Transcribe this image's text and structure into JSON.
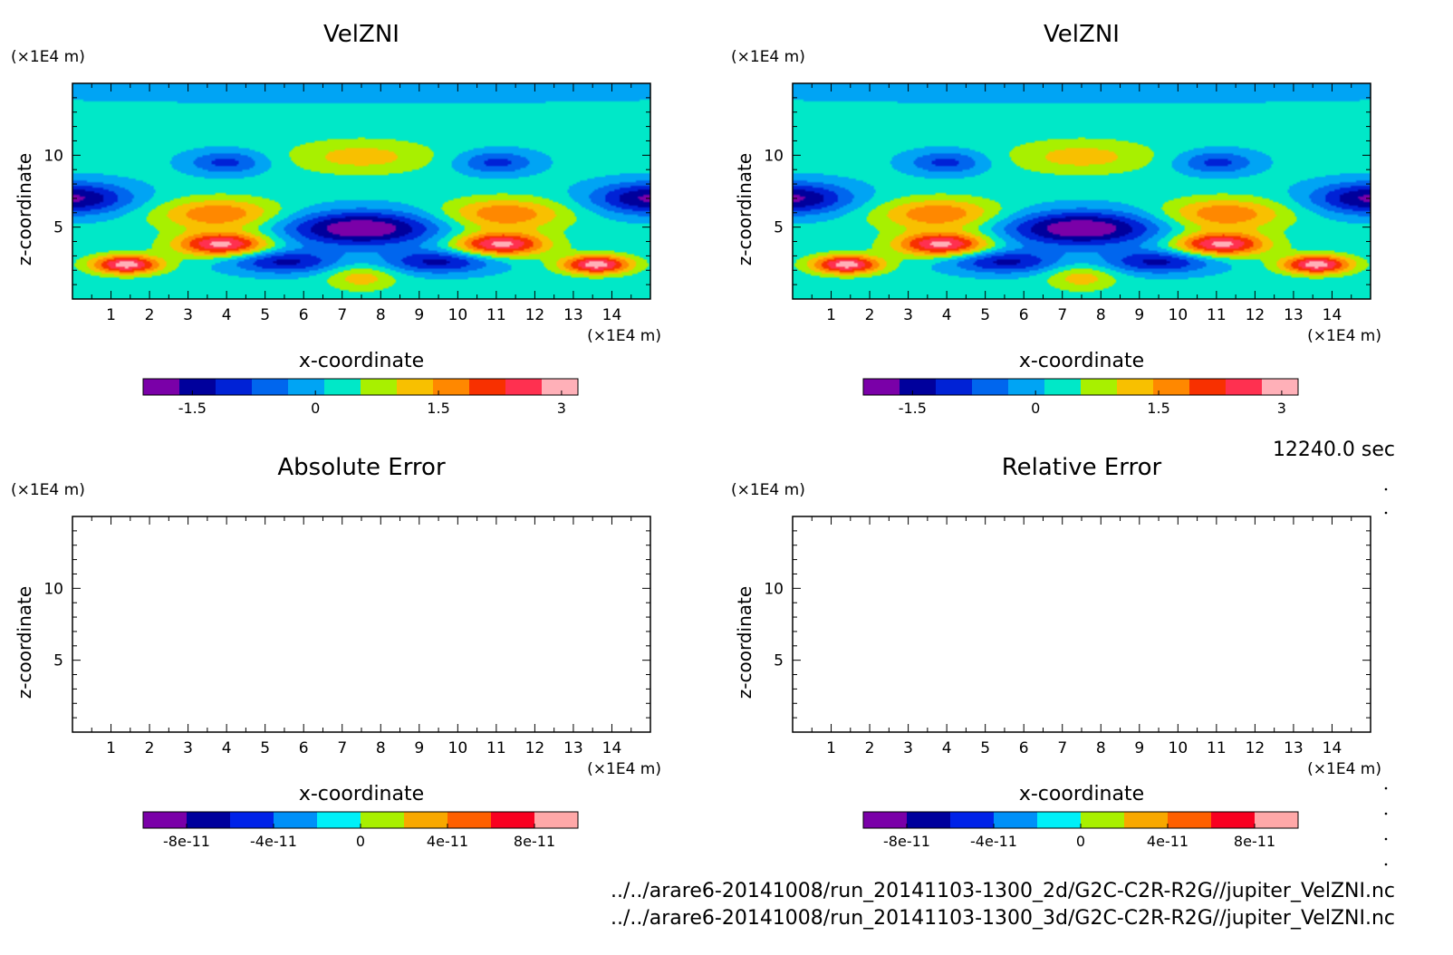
{
  "time_label": "12240.0 sec",
  "file_paths": [
    "../../arare6-20141008/run_20141103-1300_2d/G2C-C2R-R2G//jupiter_VelZNI.nc",
    "../../arare6-20141008/run_20141103-1300_3d/G2C-C2R-R2G//jupiter_VelZNI.nc"
  ],
  "colors": {
    "velocity_levels": [
      "#7a00a8",
      "#00009c",
      "#0022d6",
      "#0066ee",
      "#00a4f4",
      "#00e8c8",
      "#a8f000",
      "#f8c000",
      "#ff8800",
      "#f83000",
      "#ff3050",
      "#ffb0b8"
    ],
    "error_levels": [
      "#7a00a8",
      "#00009c",
      "#0022e8",
      "#0090f8",
      "#00f0f8",
      "#a8f000",
      "#f8a800",
      "#ff6000",
      "#f80020",
      "#ffa8a8"
    ]
  },
  "chart_data": [
    {
      "type": "heatmap",
      "title": "VelZNI",
      "xlabel": "x-coordinate",
      "ylabel": "z-coordinate",
      "x_unit": "(×1E4 m)",
      "y_unit": "(×1E4 m)",
      "xlim": [
        0,
        15
      ],
      "ylim": [
        0,
        15
      ],
      "x_ticks": [
        1,
        2,
        3,
        4,
        5,
        6,
        7,
        8,
        9,
        10,
        11,
        12,
        13,
        14
      ],
      "y_ticks": [
        5,
        10
      ],
      "colorbar": {
        "min": -2.1,
        "max": 3.2,
        "step": 0.5,
        "tick_values": [
          -1.5,
          0,
          1.5,
          3
        ],
        "tick_labels": [
          "-1.5",
          "0",
          "1.5",
          "3"
        ]
      },
      "field": "VelZNI contour field (2d run)"
    },
    {
      "type": "heatmap",
      "title": "VelZNI",
      "xlabel": "x-coordinate",
      "ylabel": "z-coordinate",
      "x_unit": "(×1E4 m)",
      "y_unit": "(×1E4 m)",
      "xlim": [
        0,
        15
      ],
      "ylim": [
        0,
        15
      ],
      "x_ticks": [
        1,
        2,
        3,
        4,
        5,
        6,
        7,
        8,
        9,
        10,
        11,
        12,
        13,
        14
      ],
      "y_ticks": [
        5,
        10
      ],
      "colorbar": {
        "min": -2.1,
        "max": 3.2,
        "step": 0.5,
        "tick_values": [
          -1.5,
          0,
          1.5,
          3
        ],
        "tick_labels": [
          "-1.5",
          "0",
          "1.5",
          "3"
        ]
      },
      "field": "VelZNI contour field (3d run)"
    },
    {
      "type": "heatmap",
      "title": "Absolute Error",
      "xlabel": "x-coordinate",
      "ylabel": "z-coordinate",
      "x_unit": "(×1E4 m)",
      "y_unit": "(×1E4 m)",
      "xlim": [
        0,
        15
      ],
      "ylim": [
        0,
        15
      ],
      "x_ticks": [
        1,
        2,
        3,
        4,
        5,
        6,
        7,
        8,
        9,
        10,
        11,
        12,
        13,
        14
      ],
      "y_ticks": [
        5,
        10
      ],
      "colorbar": {
        "min": -1e-10,
        "max": 1e-10,
        "step": 2e-11,
        "tick_values": [
          -8e-11,
          -4e-11,
          0,
          4e-11,
          8e-11
        ],
        "tick_labels": [
          "-8e-11",
          "-4e-11",
          "0",
          "4e-11",
          "8e-11"
        ]
      },
      "field": "empty"
    },
    {
      "type": "heatmap",
      "title": "Relative Error",
      "xlabel": "x-coordinate",
      "ylabel": "z-coordinate",
      "x_unit": "(×1E4 m)",
      "y_unit": "(×1E4 m)",
      "xlim": [
        0,
        15
      ],
      "ylim": [
        0,
        15
      ],
      "x_ticks": [
        1,
        2,
        3,
        4,
        5,
        6,
        7,
        8,
        9,
        10,
        11,
        12,
        13,
        14
      ],
      "y_ticks": [
        5,
        10
      ],
      "colorbar": {
        "min": -1e-10,
        "max": 1e-10,
        "step": 2e-11,
        "tick_values": [
          -8e-11,
          -4e-11,
          0,
          4e-11,
          8e-11
        ],
        "tick_labels": [
          "-8e-11",
          "-4e-11",
          "0",
          "4e-11",
          "8e-11"
        ]
      },
      "field": "empty"
    }
  ]
}
